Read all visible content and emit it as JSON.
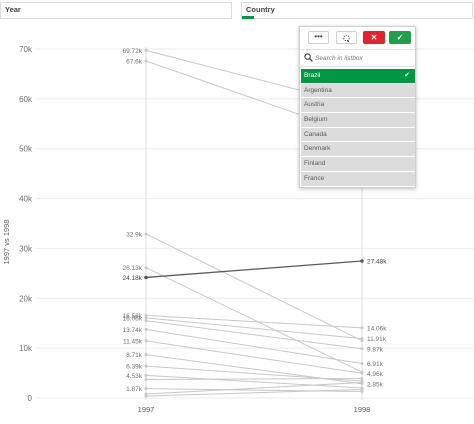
{
  "filters": {
    "year": {
      "title": "Year"
    },
    "country": {
      "title": "Country"
    }
  },
  "listbox": {
    "more_label": "•••",
    "cancel_label": "✕",
    "confirm_label": "✓",
    "search_placeholder": "Search in listbox",
    "items": [
      {
        "label": "Brazil",
        "selected": true
      },
      {
        "label": "Argentina",
        "selected": false
      },
      {
        "label": "Austria",
        "selected": false
      },
      {
        "label": "Belgium",
        "selected": false
      },
      {
        "label": "Canada",
        "selected": false
      },
      {
        "label": "Denmark",
        "selected": false
      },
      {
        "label": "Finland",
        "selected": false
      },
      {
        "label": "France",
        "selected": false
      }
    ]
  },
  "colors": {
    "accent": "#009845",
    "cancel": "#e2232c",
    "confirm": "#20a04b",
    "highlight_line": "#595959",
    "dim_line": "#c8c8c8"
  },
  "chart_data": {
    "type": "line",
    "categories": [
      "1997",
      "1998"
    ],
    "ylabel": "1997 vs 1998",
    "ylim": [
      0,
      70000
    ],
    "y_ticks": [
      0,
      10000,
      20000,
      30000,
      40000,
      50000,
      60000,
      70000
    ],
    "y_tick_labels": [
      "0",
      "10k",
      "20k",
      "30k",
      "40k",
      "50k",
      "60k",
      "70k"
    ],
    "grid": true,
    "series": [
      {
        "values": [
          69720,
          58500
        ],
        "highlight": false,
        "labels": [
          "69.72k",
          ""
        ]
      },
      {
        "values": [
          67600,
          52500
        ],
        "highlight": false,
        "labels": [
          "67.6k",
          ""
        ]
      },
      {
        "values": [
          32900,
          11500
        ],
        "highlight": false,
        "labels": [
          "32.9k",
          ""
        ]
      },
      {
        "values": [
          26130,
          5200
        ],
        "highlight": false,
        "labels": [
          "26.13k",
          ""
        ]
      },
      {
        "values": [
          24180,
          27480
        ],
        "highlight": true,
        "labels": [
          "24.18k",
          "27.48k"
        ]
      },
      {
        "values": [
          16560,
          14060
        ],
        "highlight": false,
        "labels": [
          "16.56k",
          "14.06k"
        ]
      },
      {
        "values": [
          16060,
          11910
        ],
        "highlight": false,
        "labels": [
          "16.06k",
          "11.91k"
        ]
      },
      {
        "values": [
          15500,
          9870
        ],
        "highlight": false,
        "labels": [
          "",
          "9.87k"
        ]
      },
      {
        "values": [
          13740,
          6910
        ],
        "highlight": false,
        "labels": [
          "13.74k",
          "6.91k"
        ]
      },
      {
        "values": [
          11450,
          4960
        ],
        "highlight": false,
        "labels": [
          "11.45k",
          "4.96k"
        ]
      },
      {
        "values": [
          8710,
          2850
        ],
        "highlight": false,
        "labels": [
          "8.71k",
          "2.85k"
        ]
      },
      {
        "values": [
          6390,
          3400
        ],
        "highlight": false,
        "labels": [
          "6.39k",
          ""
        ]
      },
      {
        "values": [
          4530,
          2000
        ],
        "highlight": false,
        "labels": [
          "4.53k",
          ""
        ]
      },
      {
        "values": [
          3700,
          3900
        ],
        "highlight": false,
        "labels": [
          "",
          ""
        ]
      },
      {
        "values": [
          1870,
          1300
        ],
        "highlight": false,
        "labels": [
          "1.87k",
          ""
        ]
      },
      {
        "values": [
          800,
          3100
        ],
        "highlight": false,
        "labels": [
          "",
          ""
        ]
      },
      {
        "values": [
          400,
          1700
        ],
        "highlight": false,
        "labels": [
          "",
          ""
        ]
      }
    ]
  }
}
